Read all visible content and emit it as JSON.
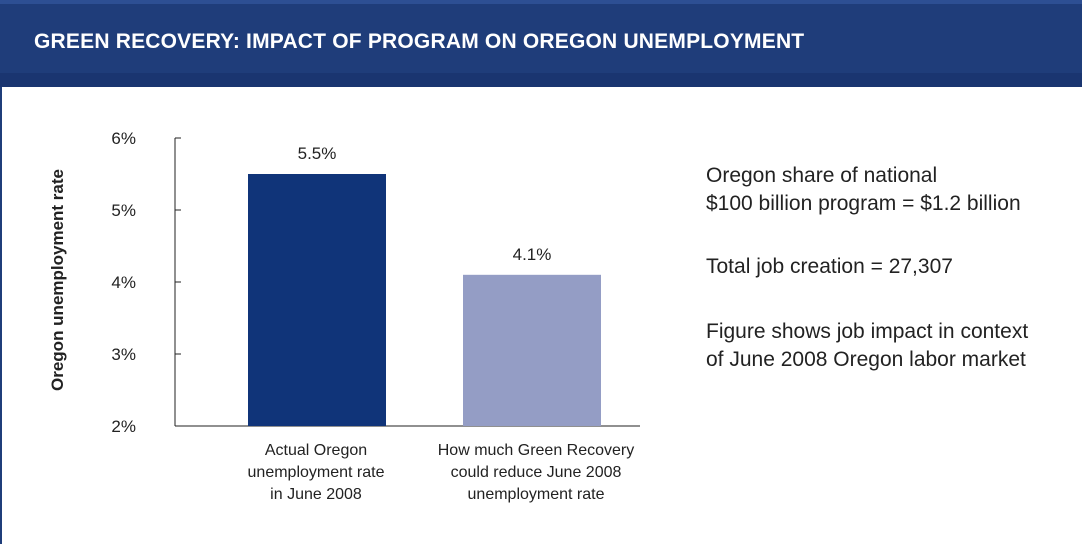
{
  "header": {
    "title": "GREEN RECOVERY: IMPACT OF PROGRAM ON OREGON UNEMPLOYMENT"
  },
  "colors": {
    "header_bg": "#1f3d7a",
    "bar_actual": "#103479",
    "bar_reduced": "#949dc5"
  },
  "chart_data": {
    "type": "bar",
    "categories": [
      [
        "Actual Oregon",
        "unemployment rate",
        "in June 2008"
      ],
      [
        "How much Green Recovery",
        "could reduce June 2008",
        "unemployment rate"
      ]
    ],
    "values": [
      5.5,
      4.1
    ],
    "data_labels": [
      "5.5%",
      "4.1%"
    ],
    "ylabel": "Oregon unemployment rate",
    "ylim": [
      2,
      6
    ],
    "yticks": [
      "2%",
      "3%",
      "4%",
      "5%",
      "6%"
    ],
    "grid": false
  },
  "notes": {
    "share_line1": "Oregon share of national",
    "share_line2": "$100 billion program = $1.2 billion",
    "jobs": "Total job creation = 27,307",
    "context_line1": "Figure shows job impact in context",
    "context_line2": "of June 2008 Oregon labor market"
  }
}
